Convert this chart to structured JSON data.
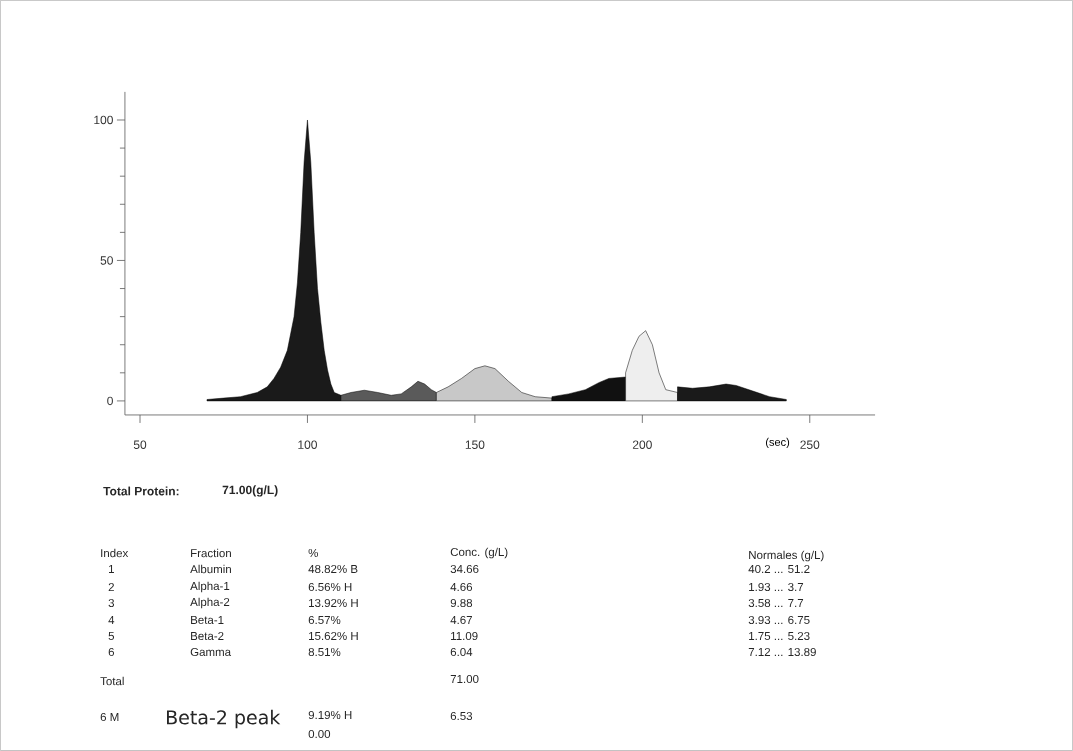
{
  "chart_data": {
    "type": "area",
    "xlabel": "(sec)",
    "xlim": [
      45.5,
      269.5
    ],
    "ylim": [
      -5,
      110
    ],
    "xticks": [
      50,
      100,
      150,
      200,
      250
    ],
    "yticks": [
      0,
      50,
      100
    ],
    "series": [
      {
        "color": "#1a1a1a",
        "x": [
          70,
          75,
          80,
          85,
          88,
          90,
          92,
          94,
          96,
          97,
          98,
          99,
          100,
          101,
          102,
          103,
          104,
          105,
          106,
          107,
          108,
          110
        ],
        "values": [
          0.5,
          1,
          1.5,
          3,
          5,
          8,
          12,
          18,
          30,
          42,
          60,
          85,
          100,
          85,
          60,
          40,
          28,
          18,
          11,
          6,
          3,
          2
        ]
      },
      {
        "color": "#5a5a5a",
        "x": [
          110,
          113,
          117,
          121,
          125,
          128,
          131,
          133,
          135,
          137,
          138.5
        ],
        "values": [
          2,
          3,
          3.8,
          3,
          2,
          2.5,
          5,
          7,
          6,
          4,
          3
        ]
      },
      {
        "color": "#c8c8c8",
        "x": [
          138.5,
          142,
          146,
          150,
          153,
          156,
          160,
          164,
          168,
          173
        ],
        "values": [
          3,
          5,
          8,
          11.5,
          12.5,
          11.5,
          7,
          3,
          1.5,
          1
        ]
      },
      {
        "color": "#111111",
        "x": [
          173,
          178,
          183,
          187,
          190,
          195
        ],
        "values": [
          1.5,
          2.5,
          4,
          6.5,
          8,
          8.5
        ]
      },
      {
        "color": "#eeeeee",
        "x": [
          195,
          197,
          199,
          201,
          203,
          205,
          207,
          210.5
        ],
        "values": [
          10,
          18,
          23,
          25,
          20,
          10,
          4,
          3
        ]
      },
      {
        "color": "#1a1a1a",
        "x": [
          210.5,
          215,
          220,
          225,
          228,
          233,
          238,
          243
        ],
        "values": [
          5,
          4.5,
          5,
          6,
          5.5,
          3.5,
          1.5,
          0.5
        ]
      }
    ],
    "annotations": [
      "Total Protein:",
      "71.00(g/L)",
      "Index",
      "Fraction",
      "%",
      "Conc. (g/L)",
      "Normales (g/L)",
      "1",
      "Albumin",
      "48.82% B",
      "34.66",
      "40.2 ... 51.2",
      "2",
      "Alpha-1",
      "6.56% H",
      "4.66",
      "1.93 ... 3.7",
      "3",
      "Alpha-2",
      "13.92% H",
      "9.88",
      "3.58 ... 7.7",
      "4",
      "Beta-1",
      "6.57%",
      "4.67",
      "3.93 ... 6.75",
      "5",
      "Beta-2",
      "15.62% H",
      "11.09",
      "1.75 ... 5.23",
      "6",
      "Gamma",
      "8.51%",
      "6.04",
      "7.12 ... 13.89",
      "Total",
      "71.00",
      "6 M",
      "Beta-2 peak",
      "9.19% H",
      "6.53",
      "0.00"
    ]
  }
}
